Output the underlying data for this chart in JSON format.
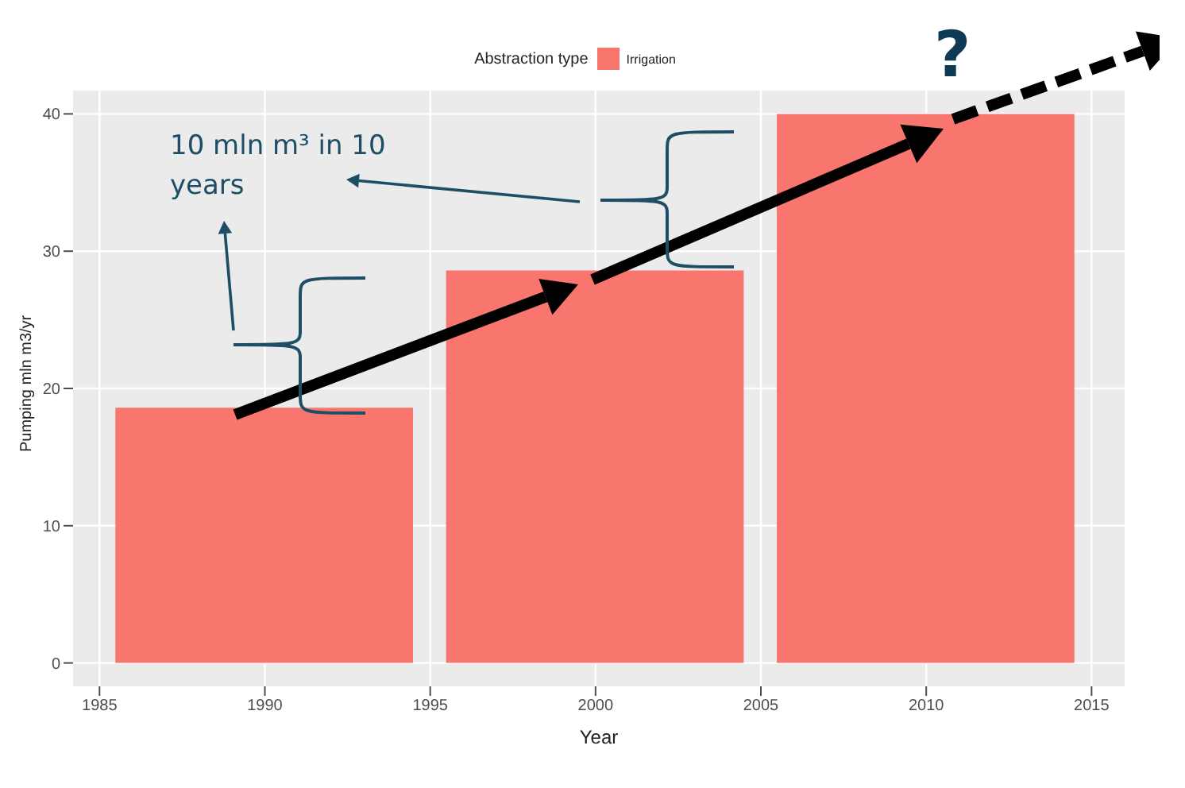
{
  "chart_data": {
    "type": "bar",
    "xlabel": "Year",
    "ylabel": "Pumping mln m3/yr",
    "legend_title": "Abstraction type",
    "x": [
      1990,
      2000,
      2010
    ],
    "series": [
      {
        "name": "Irrigation",
        "color": "#f8766d",
        "values": [
          18.6,
          28.6,
          40
        ]
      }
    ],
    "xlim": [
      1984.2,
      2016
    ],
    "xticks": [
      1985,
      1990,
      1995,
      2000,
      2005,
      2010,
      2015
    ],
    "ylim": [
      -1.7,
      41.7
    ],
    "yticks": [
      0,
      10,
      20,
      30,
      40
    ],
    "grid": true,
    "legend": "top",
    "annotations": [
      "10 mln m³ in 10 years",
      "?"
    ]
  }
}
